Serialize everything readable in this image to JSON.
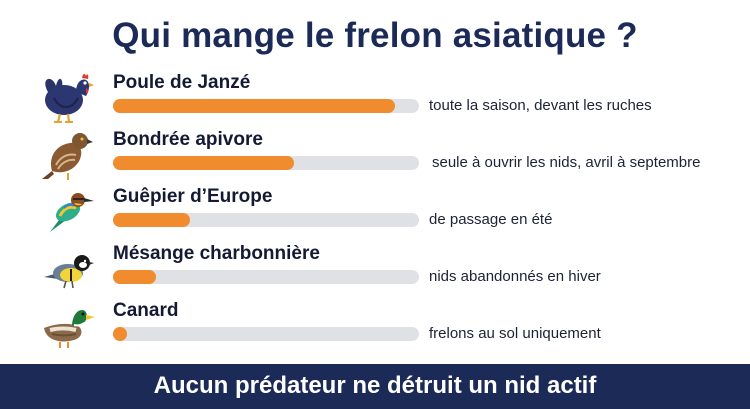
{
  "title": "Qui mange le frelon asiatique ?",
  "footer": "Aucun prédateur ne détruit un nid actif",
  "colors": {
    "title": "#1b2a57",
    "bar_fill": "#f08c2d",
    "bar_track": "#dfe1e5",
    "footer_bg": "#1b2a57",
    "footer_text": "#ffffff"
  },
  "chart_data": {
    "type": "bar",
    "orientation": "horizontal",
    "categories": [
      "Poule de Janzé",
      "Bondrée apivore",
      "Guêpier d’Europe",
      "Mésange charbonnière",
      "Canard"
    ],
    "values": [
      0.92,
      0.59,
      0.25,
      0.14,
      0.03
    ],
    "value_scale": "fraction of full bar",
    "annotations": [
      "toute la saison, devant les ruches",
      "seule à ouvrir les nids, avril à septembre",
      "de passage en été",
      "nids abandonnés en hiver",
      "frelons au sol uniquement"
    ],
    "icons": [
      "chicken-icon",
      "honey-buzzard-icon",
      "bee-eater-icon",
      "great-tit-icon",
      "duck-icon"
    ],
    "grid": false,
    "legend": "none"
  }
}
